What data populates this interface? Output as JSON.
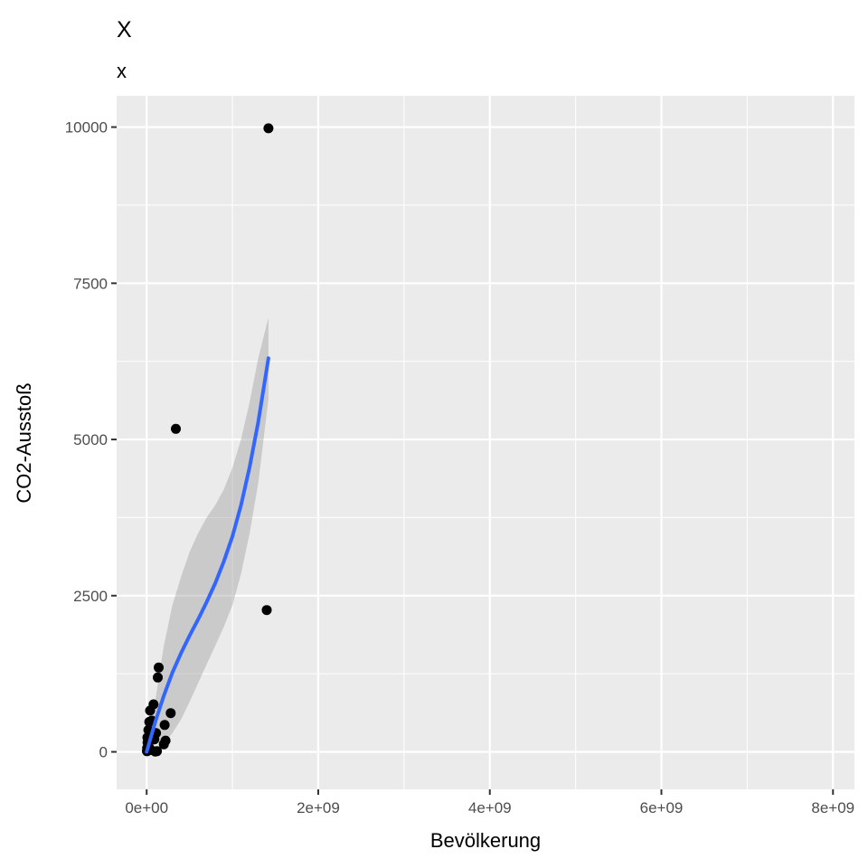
{
  "chart_data": {
    "type": "scatter",
    "title": "X",
    "subtitle": "x",
    "xlabel": "Bevölkerung",
    "ylabel": "CO2-Ausstoß",
    "xlim": [
      -350000000.0,
      8250000000.0
    ],
    "ylim": [
      -600,
      10500
    ],
    "x_ticks": [
      0,
      2000000000,
      4000000000,
      6000000000,
      8000000000
    ],
    "x_tick_labels": [
      "0e+00",
      "2e+09",
      "4e+09",
      "6e+09",
      "8e+09"
    ],
    "y_ticks": [
      0,
      2500,
      5000,
      7500,
      10000
    ],
    "y_tick_labels": [
      "0",
      "2500",
      "5000",
      "7500",
      "10000"
    ],
    "x_minor_ticks": [
      1000000000,
      3000000000,
      5000000000,
      7000000000
    ],
    "y_minor_ticks": [
      1250,
      3750,
      6250,
      8750
    ],
    "grid": true,
    "colors": {
      "panel": "#ebebeb",
      "grid": "#ffffff",
      "points": "#000000",
      "smooth_line": "#3366ff",
      "ribbon": "#999999"
    },
    "points": [
      {
        "x": 1420000000,
        "y": 9980
      },
      {
        "x": 340000000,
        "y": 5170
      },
      {
        "x": 1400000000,
        "y": 2270
      },
      {
        "x": 140000000,
        "y": 1350
      },
      {
        "x": 130000000,
        "y": 1190
      },
      {
        "x": 280000000,
        "y": 620
      },
      {
        "x": 80000000,
        "y": 760
      },
      {
        "x": 40000000,
        "y": 660
      },
      {
        "x": 210000000,
        "y": 430
      },
      {
        "x": 220000000,
        "y": 180
      },
      {
        "x": 200000000,
        "y": 120
      },
      {
        "x": 60000000,
        "y": 500
      },
      {
        "x": 30000000,
        "y": 480
      },
      {
        "x": 20000000,
        "y": 350
      },
      {
        "x": 110000000,
        "y": 300
      },
      {
        "x": 90000000,
        "y": 200
      },
      {
        "x": 10000000,
        "y": 150
      },
      {
        "x": 5000000,
        "y": 60
      },
      {
        "x": 15000000,
        "y": 20
      },
      {
        "x": 50000000,
        "y": 30
      },
      {
        "x": 120000000,
        "y": 10
      },
      {
        "x": 100000000,
        "y": 5
      },
      {
        "x": 25000000,
        "y": 80
      },
      {
        "x": 8000000,
        "y": 230
      },
      {
        "x": 3000000,
        "y": 10
      }
    ],
    "smooth": {
      "x": [
        0,
        100000000,
        200000000,
        300000000,
        400000000,
        500000000,
        600000000,
        700000000,
        800000000,
        900000000,
        1000000000,
        1100000000,
        1200000000,
        1300000000,
        1420000000
      ],
      "y": [
        0,
        480,
        900,
        1270,
        1580,
        1860,
        2120,
        2400,
        2700,
        3050,
        3450,
        3950,
        4560,
        5280,
        6300
      ],
      "lower": [
        -100,
        150,
        130,
        300,
        520,
        800,
        1100,
        1400,
        1700,
        2000,
        2350,
        2850,
        3500,
        4300,
        5650
      ],
      "upper": [
        100,
        820,
        1700,
        2350,
        2800,
        3200,
        3500,
        3750,
        3950,
        4200,
        4550,
        5000,
        5600,
        6300,
        6950
      ]
    }
  }
}
